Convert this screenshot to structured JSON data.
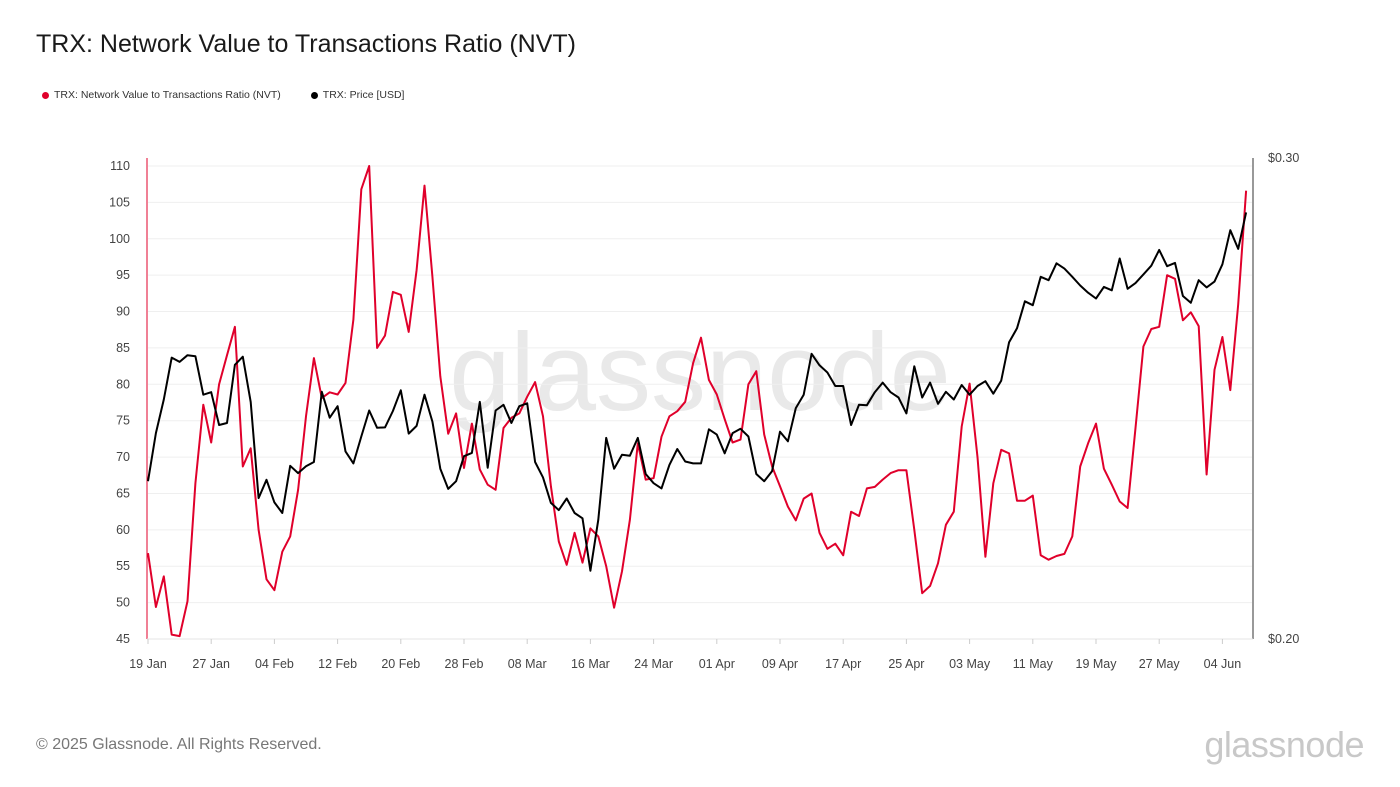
{
  "header": {
    "title": "TRX: Network Value to Transactions Ratio (NVT)"
  },
  "footer": {
    "copyright": "© 2025 Glassnode. All Rights Reserved.",
    "logo": "glassnode",
    "watermark": "glassnode"
  },
  "chart_data": {
    "type": "line",
    "title": "TRX: Network Value to Transactions Ratio (NVT)",
    "legend_position": "top-left",
    "grid": true,
    "x_ticks": [
      "19 Jan",
      "27 Jan",
      "04 Feb",
      "12 Feb",
      "20 Feb",
      "28 Feb",
      "08 Mar",
      "16 Mar",
      "24 Mar",
      "01 Apr",
      "09 Apr",
      "17 Apr",
      "25 Apr",
      "03 May",
      "11 May",
      "19 May",
      "27 May",
      "04 Jun"
    ],
    "y_left": {
      "ticks": [
        45,
        50,
        55,
        60,
        65,
        70,
        75,
        80,
        85,
        90,
        95,
        100,
        105,
        110
      ],
      "range": [
        45,
        110
      ],
      "color": "#e0002b"
    },
    "y_right": {
      "ticks": [
        "$0.20",
        "$0.30"
      ],
      "range": [
        0.2,
        0.3
      ],
      "color": "#000000"
    },
    "x": [
      "2025-01-19",
      "2025-01-20",
      "2025-01-21",
      "2025-01-22",
      "2025-01-23",
      "2025-01-24",
      "2025-01-25",
      "2025-01-26",
      "2025-01-27",
      "2025-01-28",
      "2025-01-29",
      "2025-01-30",
      "2025-01-31",
      "2025-02-01",
      "2025-02-02",
      "2025-02-03",
      "2025-02-04",
      "2025-02-05",
      "2025-02-06",
      "2025-02-07",
      "2025-02-08",
      "2025-02-09",
      "2025-02-10",
      "2025-02-11",
      "2025-02-12",
      "2025-02-13",
      "2025-02-14",
      "2025-02-15",
      "2025-02-16",
      "2025-02-17",
      "2025-02-18",
      "2025-02-19",
      "2025-02-20",
      "2025-02-21",
      "2025-02-22",
      "2025-02-23",
      "2025-02-24",
      "2025-02-25",
      "2025-02-26",
      "2025-02-27",
      "2025-02-28",
      "2025-03-01",
      "2025-03-02",
      "2025-03-03",
      "2025-03-04",
      "2025-03-05",
      "2025-03-06",
      "2025-03-07",
      "2025-03-08",
      "2025-03-09",
      "2025-03-10",
      "2025-03-11",
      "2025-03-12",
      "2025-03-13",
      "2025-03-14",
      "2025-03-15",
      "2025-03-16",
      "2025-03-17",
      "2025-03-18",
      "2025-03-19",
      "2025-03-20",
      "2025-03-21",
      "2025-03-22",
      "2025-03-23",
      "2025-03-24",
      "2025-03-25",
      "2025-03-26",
      "2025-03-27",
      "2025-03-28",
      "2025-03-29",
      "2025-03-30",
      "2025-03-31",
      "2025-04-01",
      "2025-04-02",
      "2025-04-03",
      "2025-04-04",
      "2025-04-05",
      "2025-04-06",
      "2025-04-07",
      "2025-04-08",
      "2025-04-09",
      "2025-04-10",
      "2025-04-11",
      "2025-04-12",
      "2025-04-13",
      "2025-04-14",
      "2025-04-15",
      "2025-04-16",
      "2025-04-17",
      "2025-04-18",
      "2025-04-19",
      "2025-04-20",
      "2025-04-21",
      "2025-04-22",
      "2025-04-23",
      "2025-04-24",
      "2025-04-25",
      "2025-04-26",
      "2025-04-27",
      "2025-04-28",
      "2025-04-29",
      "2025-04-30",
      "2025-05-01",
      "2025-05-02",
      "2025-05-03",
      "2025-05-04",
      "2025-05-05",
      "2025-05-06",
      "2025-05-07",
      "2025-05-08",
      "2025-05-09",
      "2025-05-10",
      "2025-05-11",
      "2025-05-12",
      "2025-05-13",
      "2025-05-14",
      "2025-05-15",
      "2025-05-16",
      "2025-05-17",
      "2025-05-18",
      "2025-05-19",
      "2025-05-20",
      "2025-05-21",
      "2025-05-22",
      "2025-05-23",
      "2025-05-24",
      "2025-05-25",
      "2025-05-26",
      "2025-05-27",
      "2025-05-28",
      "2025-05-29",
      "2025-05-30",
      "2025-05-31",
      "2025-06-01",
      "2025-06-02",
      "2025-06-03",
      "2025-06-04",
      "2025-06-05",
      "2025-06-06",
      "2025-06-07"
    ],
    "series": [
      {
        "name": "TRX: Network Value to Transactions Ratio (NVT)",
        "axis": "left",
        "color": "#e0002b",
        "values": [
          56.8,
          49.4,
          53.6,
          45.6,
          45.4,
          50.2,
          66.4,
          77.2,
          72.0,
          80.0,
          84.0,
          87.9,
          68.7,
          71.2,
          60.0,
          53.2,
          51.7,
          57.0,
          59.1,
          65.5,
          75.6,
          83.6,
          78.1,
          78.9,
          78.6,
          80.2,
          88.9,
          106.8,
          110.0,
          85.0,
          86.7,
          92.7,
          92.3,
          87.2,
          95.7,
          107.3,
          94.8,
          81.1,
          73.2,
          76.0,
          68.5,
          74.6,
          68.3,
          66.2,
          65.5,
          74.0,
          75.4,
          76.0,
          78.3,
          80.3,
          75.6,
          66.0,
          58.4,
          55.2,
          59.6,
          55.5,
          60.2,
          59.1,
          55.0,
          49.3,
          54.3,
          61.4,
          71.9,
          66.9,
          67.1,
          72.8,
          75.6,
          76.3,
          77.6,
          82.9,
          86.4,
          80.6,
          78.6,
          75.2,
          72.0,
          72.4,
          80.0,
          81.8,
          73.1,
          68.7,
          66.0,
          63.2,
          61.3,
          64.3,
          65.0,
          59.6,
          57.4,
          58.1,
          56.5,
          62.5,
          61.9,
          65.7,
          65.9,
          66.9,
          67.8,
          68.2,
          68.2,
          60.0,
          51.3,
          52.3,
          55.4,
          60.7,
          62.5,
          74.2,
          80.1,
          70.0,
          56.3,
          66.4,
          71.0,
          70.5,
          64.0,
          64.0,
          64.7,
          56.5,
          55.9,
          56.4,
          56.7,
          59.1,
          68.7,
          71.9,
          74.6,
          68.4,
          66.2,
          63.9,
          63.0,
          74.0,
          85.2,
          87.6,
          87.9,
          95.0,
          94.5,
          88.8,
          89.9,
          88.0,
          67.6,
          82.0,
          86.5,
          79.2,
          91.0,
          106.6
        ]
      },
      {
        "name": "TRX: Price [USD]",
        "axis": "right",
        "color": "#000000",
        "values": [
          0.2328,
          0.2428,
          0.2498,
          0.2585,
          0.2576,
          0.259,
          0.2588,
          0.2508,
          0.2513,
          0.2445,
          0.2449,
          0.257,
          0.2587,
          0.2493,
          0.2293,
          0.2331,
          0.2284,
          0.2262,
          0.236,
          0.2345,
          0.2359,
          0.2368,
          0.2514,
          0.246,
          0.2484,
          0.239,
          0.2365,
          0.2421,
          0.2475,
          0.2439,
          0.244,
          0.2474,
          0.2517,
          0.2427,
          0.2443,
          0.2508,
          0.2452,
          0.2354,
          0.2312,
          0.2328,
          0.238,
          0.2387,
          0.2493,
          0.2356,
          0.2475,
          0.2487,
          0.2449,
          0.2484,
          0.249,
          0.2368,
          0.2336,
          0.2283,
          0.2268,
          0.2292,
          0.2262,
          0.2251,
          0.2142,
          0.2248,
          0.2418,
          0.2354,
          0.2383,
          0.2381,
          0.2418,
          0.2343,
          0.2324,
          0.2313,
          0.2362,
          0.2395,
          0.2369,
          0.2365,
          0.2365,
          0.2436,
          0.2425,
          0.2386,
          0.2428,
          0.2437,
          0.2421,
          0.2343,
          0.2328,
          0.2349,
          0.2431,
          0.2411,
          0.248,
          0.2508,
          0.2593,
          0.2569,
          0.2554,
          0.2526,
          0.2526,
          0.2445,
          0.2487,
          0.2486,
          0.2513,
          0.2533,
          0.2513,
          0.2502,
          0.2469,
          0.2567,
          0.2502,
          0.2533,
          0.2489,
          0.2514,
          0.2498,
          0.2528,
          0.2508,
          0.2526,
          0.2536,
          0.251,
          0.2537,
          0.2617,
          0.2646,
          0.2702,
          0.2694,
          0.2753,
          0.2746,
          0.2781,
          0.277,
          0.2753,
          0.2735,
          0.272,
          0.2708,
          0.2732,
          0.2725,
          0.2791,
          0.2728,
          0.274,
          0.2758,
          0.2776,
          0.2809,
          0.2775,
          0.2782,
          0.2713,
          0.2699,
          0.2746,
          0.2731,
          0.2743,
          0.2779,
          0.285,
          0.2811,
          0.2887
        ]
      }
    ]
  }
}
